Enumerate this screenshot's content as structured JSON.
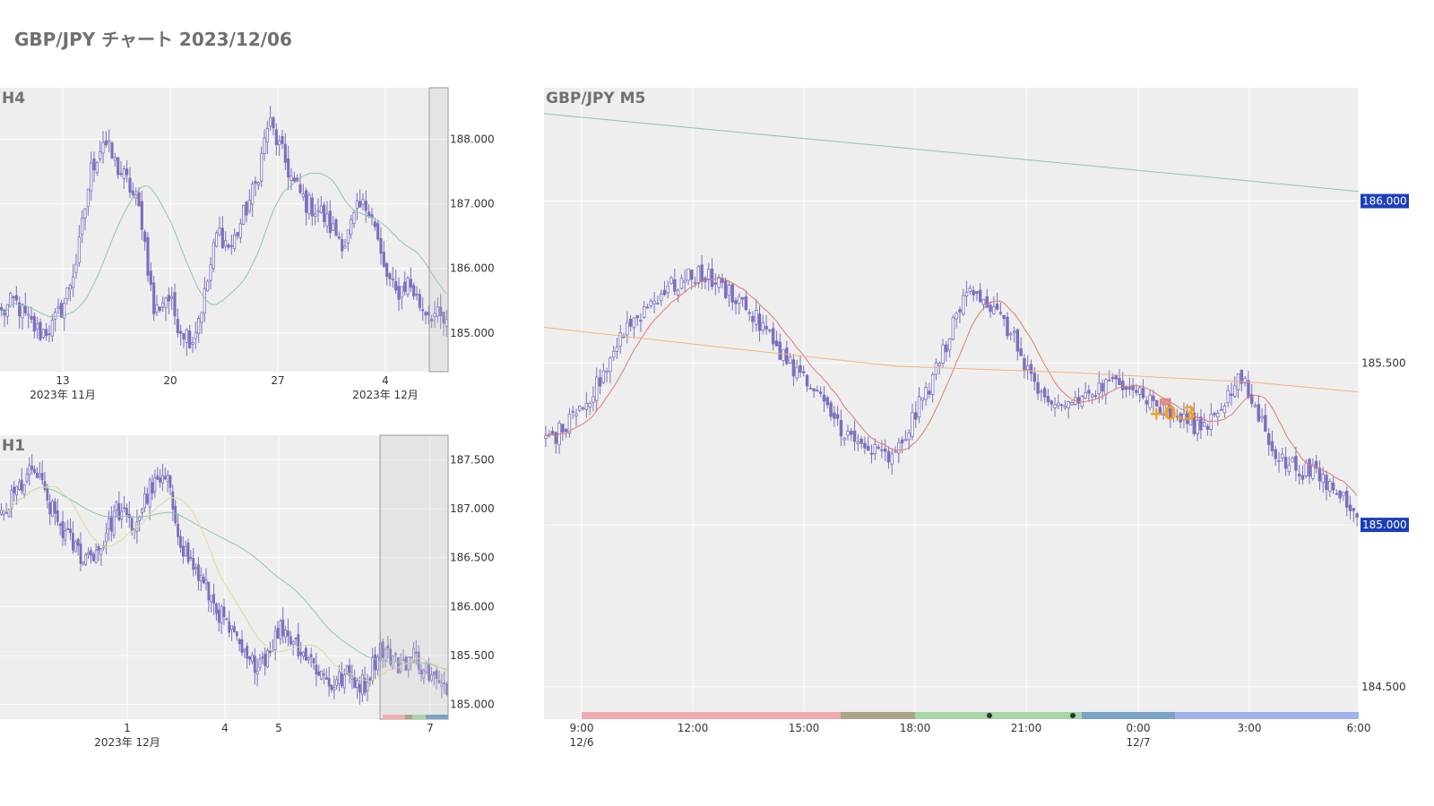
{
  "page": {
    "title": "GBP/JPY チャート 2023/12/06"
  },
  "colors": {
    "panel_bg": "#eeeeee",
    "candle": "#7b6fbd",
    "ma_green": "#8cc7a6",
    "ma_red": "#e07b72",
    "ma_orange": "#f2b27a",
    "ma_yellow": "#e3d79a",
    "axis_text": "#333333",
    "price_badge": "#1c3fb7",
    "marker_label": "#f0a020"
  },
  "chart_data": [
    {
      "name": "H4",
      "type": "candlestick",
      "title": "H4",
      "ylim": [
        184.4,
        188.8
      ],
      "y_ticks": [
        "188.000",
        "187.000",
        "186.000",
        "185.000"
      ],
      "x_ticks": [
        {
          "label": "13",
          "sub": "2023年 11月"
        },
        {
          "label": "20",
          "sub": ""
        },
        {
          "label": "27",
          "sub": ""
        },
        {
          "label": "4",
          "sub": "2023年 12月"
        }
      ],
      "anchors": [
        185.3,
        185.5,
        185.2,
        185.0,
        185.1,
        185.5,
        186.2,
        187.5,
        188.0,
        187.6,
        187.3,
        186.8,
        185.3,
        185.6,
        185.1,
        184.9,
        185.6,
        186.6,
        186.3,
        186.8,
        187.3,
        188.3,
        187.8,
        187.3,
        187.0,
        186.9,
        186.6,
        186.4,
        186.9,
        187.0,
        186.0,
        185.6,
        185.8,
        185.4,
        185.3,
        185.1
      ]
    },
    {
      "name": "H1",
      "type": "candlestick",
      "title": "H1",
      "ylim": [
        184.85,
        187.75
      ],
      "y_ticks": [
        "187.500",
        "187.000",
        "186.500",
        "186.000",
        "185.500",
        "185.000"
      ],
      "x_ticks": [
        {
          "label": "1",
          "sub": "2023年 12月"
        },
        {
          "label": "4",
          "sub": ""
        },
        {
          "label": "5",
          "sub": ""
        },
        {
          "label": "7",
          "sub": ""
        }
      ],
      "anchors": [
        186.9,
        187.2,
        187.4,
        187.0,
        186.7,
        186.5,
        186.6,
        187.0,
        186.8,
        187.2,
        187.3,
        186.6,
        186.3,
        186.0,
        185.7,
        185.4,
        185.5,
        185.8,
        185.6,
        185.4,
        185.2,
        185.3,
        185.2,
        185.6,
        185.4,
        185.5,
        185.3,
        185.1
      ]
    },
    {
      "name": "M5",
      "type": "candlestick",
      "title": "GBP/JPY M5",
      "ylim": [
        184.4,
        186.35
      ],
      "y_ticks": [
        "186.000",
        "185.500",
        "185.000",
        "184.500"
      ],
      "highlighted_prices": [
        "186.000",
        "185.000"
      ],
      "x_ticks": [
        {
          "label": "9:00",
          "sub": "12/6"
        },
        {
          "label": "12:00",
          "sub": ""
        },
        {
          "label": "15:00",
          "sub": ""
        },
        {
          "label": "18:00",
          "sub": ""
        },
        {
          "label": "21:00",
          "sub": ""
        },
        {
          "label": "0:00",
          "sub": "12/7"
        },
        {
          "label": "3:00",
          "sub": ""
        },
        {
          "label": "6:00",
          "sub": ""
        }
      ],
      "anchors": [
        185.25,
        185.35,
        185.6,
        185.72,
        185.78,
        185.7,
        185.55,
        185.4,
        185.25,
        185.2,
        185.45,
        185.75,
        185.6,
        185.35,
        185.4,
        185.45,
        185.35,
        185.3,
        185.45,
        185.2,
        185.15,
        185.05
      ],
      "marker": {
        "label": "+0.3"
      }
    }
  ]
}
